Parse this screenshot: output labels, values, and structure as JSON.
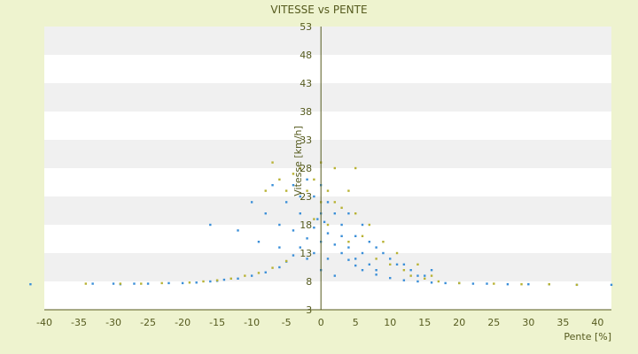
{
  "chart_data": {
    "type": "scatter",
    "title": "VITESSE vs PENTE",
    "xlabel": "Pente [%]",
    "ylabel": "Vitesse [km/h]",
    "xlim": [
      -40,
      42
    ],
    "ylim": [
      3,
      53
    ],
    "x_ticks": [
      -40,
      -35,
      -30,
      -25,
      -20,
      -15,
      -10,
      -5,
      0,
      5,
      10,
      15,
      20,
      25,
      30,
      35,
      40
    ],
    "y_ticks": [
      3,
      8,
      13,
      18,
      23,
      28,
      33,
      38,
      43,
      48,
      53
    ],
    "grid": "horizontal-bands",
    "legend": "none",
    "series": [
      {
        "color": "#3b8fd8",
        "points": [
          [
            -42,
            7.5
          ],
          [
            -33,
            7.6
          ],
          [
            -30,
            7.6
          ],
          [
            -29,
            7.5
          ],
          [
            -27,
            7.6
          ],
          [
            -25,
            7.6
          ],
          [
            -22,
            7.7
          ],
          [
            -20,
            7.7
          ],
          [
            -18,
            7.8
          ],
          [
            -16,
            8
          ],
          [
            -15,
            8.1
          ],
          [
            -14,
            8.3
          ],
          [
            -12,
            8.5
          ],
          [
            -10,
            9
          ],
          [
            -8,
            9.6
          ],
          [
            -6,
            10.5
          ],
          [
            -5,
            11.5
          ],
          [
            -4,
            12.6
          ],
          [
            -3,
            14
          ],
          [
            -2,
            15.6
          ],
          [
            -1,
            17.5
          ],
          [
            -0.5,
            19
          ],
          [
            0,
            20
          ],
          [
            0.5,
            18.5
          ],
          [
            1,
            16.5
          ],
          [
            2,
            14.5
          ],
          [
            3,
            13
          ],
          [
            4,
            11.8
          ],
          [
            5,
            10.8
          ],
          [
            6,
            10
          ],
          [
            8,
            9.2
          ],
          [
            10,
            8.6
          ],
          [
            12,
            8.2
          ],
          [
            14,
            8
          ],
          [
            16,
            7.8
          ],
          [
            18,
            7.7
          ],
          [
            20,
            7.7
          ],
          [
            22,
            7.6
          ],
          [
            24,
            7.6
          ],
          [
            27,
            7.5
          ],
          [
            30,
            7.5
          ],
          [
            33,
            7.5
          ],
          [
            37,
            7.4
          ],
          [
            42,
            7.4
          ],
          [
            -16,
            18
          ],
          [
            -12,
            17
          ],
          [
            -10,
            22
          ],
          [
            -9,
            15
          ],
          [
            -8,
            20
          ],
          [
            -7,
            25
          ],
          [
            -6,
            18
          ],
          [
            -6,
            14
          ],
          [
            -5,
            22
          ],
          [
            -4,
            17
          ],
          [
            -4,
            25
          ],
          [
            -3,
            20
          ],
          [
            -3,
            23
          ],
          [
            -2,
            26
          ],
          [
            -2,
            12
          ],
          [
            -1,
            23
          ],
          [
            -1,
            13
          ],
          [
            0,
            25
          ],
          [
            0,
            15
          ],
          [
            0,
            10
          ],
          [
            1,
            22
          ],
          [
            1,
            12
          ],
          [
            2,
            20
          ],
          [
            2,
            9
          ],
          [
            3,
            18
          ],
          [
            3,
            16
          ],
          [
            4,
            20
          ],
          [
            4,
            14
          ],
          [
            5,
            16
          ],
          [
            5,
            12
          ],
          [
            6,
            18
          ],
          [
            6,
            13
          ],
          [
            7,
            15
          ],
          [
            7,
            11
          ],
          [
            8,
            14
          ],
          [
            8,
            10
          ],
          [
            9,
            13
          ],
          [
            10,
            12
          ],
          [
            11,
            11
          ],
          [
            12,
            11
          ],
          [
            13,
            10
          ],
          [
            14,
            9
          ],
          [
            15,
            9
          ],
          [
            16,
            10
          ]
        ]
      },
      {
        "color": "#b8b234",
        "points": [
          [
            -34,
            7.6
          ],
          [
            -29,
            7.6
          ],
          [
            -26,
            7.6
          ],
          [
            -23,
            7.7
          ],
          [
            -19,
            7.8
          ],
          [
            -17,
            8
          ],
          [
            -15,
            8.2
          ],
          [
            -13,
            8.5
          ],
          [
            -11,
            9
          ],
          [
            -9,
            9.5
          ],
          [
            -7,
            10.4
          ],
          [
            -5,
            11.6
          ],
          [
            -8,
            24
          ],
          [
            -7,
            29
          ],
          [
            -6,
            26
          ],
          [
            -5,
            24
          ],
          [
            -4,
            27
          ],
          [
            -3,
            28
          ],
          [
            -2,
            24
          ],
          [
            -1,
            26
          ],
          [
            -1,
            19
          ],
          [
            0,
            29
          ],
          [
            0,
            22
          ],
          [
            1,
            24
          ],
          [
            1,
            18
          ],
          [
            2,
            28
          ],
          [
            2,
            22
          ],
          [
            3,
            21
          ],
          [
            4,
            24
          ],
          [
            4,
            15
          ],
          [
            5,
            28
          ],
          [
            5,
            20
          ],
          [
            6,
            16
          ],
          [
            7,
            18
          ],
          [
            8,
            12
          ],
          [
            9,
            15
          ],
          [
            10,
            11
          ],
          [
            11,
            13
          ],
          [
            12,
            10
          ],
          [
            13,
            9
          ],
          [
            14,
            11
          ],
          [
            15,
            8.5
          ],
          [
            16,
            9
          ],
          [
            17,
            8
          ],
          [
            20,
            7.7
          ],
          [
            25,
            7.6
          ],
          [
            29,
            7.5
          ],
          [
            33,
            7.5
          ],
          [
            37,
            7.4
          ]
        ]
      }
    ]
  }
}
